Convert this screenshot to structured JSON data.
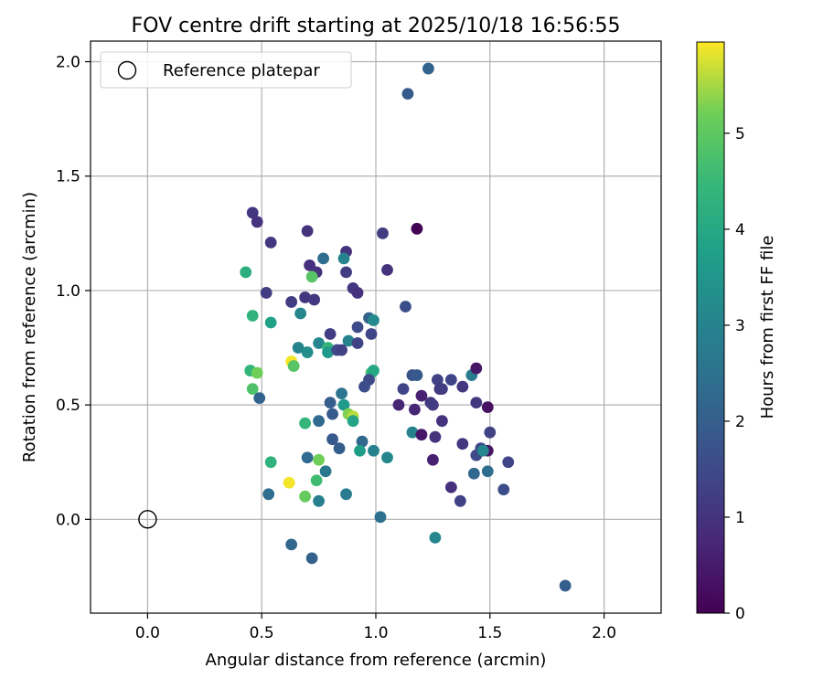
{
  "chart_data": {
    "type": "scatter",
    "title": "FOV centre drift starting at 2025/10/18 16:56:55",
    "xlabel": "Angular distance from reference (arcmin)",
    "ylabel": "Rotation from reference (arcmin)",
    "xlim": [
      -0.25,
      2.25
    ],
    "ylim": [
      -0.41,
      2.09
    ],
    "xticks": [
      0.0,
      0.5,
      1.0,
      1.5,
      2.0
    ],
    "xtick_labels": [
      "0.0",
      "0.5",
      "1.0",
      "1.5",
      "2.0"
    ],
    "yticks": [
      0.0,
      0.5,
      1.0,
      1.5,
      2.0
    ],
    "ytick_labels": [
      "0.0",
      "0.5",
      "1.0",
      "1.5",
      "2.0"
    ],
    "grid": true,
    "legend": {
      "position": "top-left",
      "entries": [
        "Reference platepar"
      ]
    },
    "reference_point": {
      "x": 0.0,
      "y": 0.0
    },
    "colorbar": {
      "label": "Hours from first FF file",
      "range": [
        0,
        5.95
      ],
      "ticks": [
        0,
        1,
        2,
        3,
        4,
        5
      ],
      "tick_labels": [
        "0",
        "1",
        "2",
        "3",
        "4",
        "5"
      ],
      "colormap": "viridis"
    },
    "points": [
      {
        "x": 1.23,
        "y": 1.97,
        "c": 2.1
      },
      {
        "x": 1.14,
        "y": 1.86,
        "c": 1.9
      },
      {
        "x": 0.46,
        "y": 1.34,
        "c": 1.1
      },
      {
        "x": 0.48,
        "y": 1.3,
        "c": 1.0
      },
      {
        "x": 0.54,
        "y": 1.21,
        "c": 1.1
      },
      {
        "x": 0.7,
        "y": 1.26,
        "c": 1.0
      },
      {
        "x": 1.18,
        "y": 1.27,
        "c": 0.05
      },
      {
        "x": 1.03,
        "y": 1.25,
        "c": 1.2
      },
      {
        "x": 0.87,
        "y": 1.17,
        "c": 1.0
      },
      {
        "x": 0.71,
        "y": 1.11,
        "c": 0.9
      },
      {
        "x": 0.74,
        "y": 1.08,
        "c": 1.0
      },
      {
        "x": 0.77,
        "y": 1.14,
        "c": 2.4
      },
      {
        "x": 0.86,
        "y": 1.14,
        "c": 3.0
      },
      {
        "x": 0.87,
        "y": 1.08,
        "c": 1.2
      },
      {
        "x": 1.05,
        "y": 1.09,
        "c": 1.0
      },
      {
        "x": 0.43,
        "y": 1.08,
        "c": 4.2
      },
      {
        "x": 0.72,
        "y": 1.06,
        "c": 4.9
      },
      {
        "x": 0.52,
        "y": 0.99,
        "c": 1.2
      },
      {
        "x": 0.9,
        "y": 1.01,
        "c": 1.1
      },
      {
        "x": 0.92,
        "y": 0.99,
        "c": 1.0
      },
      {
        "x": 0.63,
        "y": 0.95,
        "c": 1.2
      },
      {
        "x": 0.69,
        "y": 0.97,
        "c": 1.1
      },
      {
        "x": 0.73,
        "y": 0.96,
        "c": 1.1
      },
      {
        "x": 1.13,
        "y": 0.93,
        "c": 1.6
      },
      {
        "x": 0.46,
        "y": 0.89,
        "c": 4.3
      },
      {
        "x": 0.67,
        "y": 0.9,
        "c": 3.1
      },
      {
        "x": 0.54,
        "y": 0.86,
        "c": 3.8
      },
      {
        "x": 0.97,
        "y": 0.88,
        "c": 2.1
      },
      {
        "x": 0.99,
        "y": 0.87,
        "c": 3.2
      },
      {
        "x": 0.92,
        "y": 0.84,
        "c": 1.5
      },
      {
        "x": 0.8,
        "y": 0.81,
        "c": 1.2
      },
      {
        "x": 0.98,
        "y": 0.81,
        "c": 1.4
      },
      {
        "x": 0.88,
        "y": 0.78,
        "c": 3.0
      },
      {
        "x": 0.92,
        "y": 0.77,
        "c": 1.3
      },
      {
        "x": 0.75,
        "y": 0.77,
        "c": 3.1
      },
      {
        "x": 0.66,
        "y": 0.75,
        "c": 3.0
      },
      {
        "x": 0.7,
        "y": 0.73,
        "c": 3.3
      },
      {
        "x": 0.79,
        "y": 0.75,
        "c": 4.4
      },
      {
        "x": 0.79,
        "y": 0.73,
        "c": 3.6
      },
      {
        "x": 0.83,
        "y": 0.74,
        "c": 1.5
      },
      {
        "x": 0.85,
        "y": 0.74,
        "c": 1.3
      },
      {
        "x": 0.63,
        "y": 0.69,
        "c": 5.9
      },
      {
        "x": 0.64,
        "y": 0.67,
        "c": 4.9
      },
      {
        "x": 0.45,
        "y": 0.65,
        "c": 4.4
      },
      {
        "x": 0.48,
        "y": 0.64,
        "c": 5.2
      },
      {
        "x": 0.98,
        "y": 0.64,
        "c": 4.6
      },
      {
        "x": 0.99,
        "y": 0.65,
        "c": 4.0
      },
      {
        "x": 0.97,
        "y": 0.61,
        "c": 1.5
      },
      {
        "x": 0.95,
        "y": 0.58,
        "c": 1.6
      },
      {
        "x": 1.16,
        "y": 0.63,
        "c": 1.7
      },
      {
        "x": 1.18,
        "y": 0.63,
        "c": 1.9
      },
      {
        "x": 1.12,
        "y": 0.57,
        "c": 1.4
      },
      {
        "x": 1.27,
        "y": 0.61,
        "c": 1.3
      },
      {
        "x": 1.33,
        "y": 0.61,
        "c": 1.4
      },
      {
        "x": 1.28,
        "y": 0.57,
        "c": 1.1
      },
      {
        "x": 1.29,
        "y": 0.57,
        "c": 1.2
      },
      {
        "x": 1.38,
        "y": 0.58,
        "c": 1.1
      },
      {
        "x": 1.42,
        "y": 0.63,
        "c": 2.8
      },
      {
        "x": 1.44,
        "y": 0.66,
        "c": 0.4
      },
      {
        "x": 0.46,
        "y": 0.57,
        "c": 4.8
      },
      {
        "x": 0.49,
        "y": 0.53,
        "c": 2.1
      },
      {
        "x": 1.1,
        "y": 0.5,
        "c": 0.7
      },
      {
        "x": 1.2,
        "y": 0.54,
        "c": 0.6
      },
      {
        "x": 1.24,
        "y": 0.51,
        "c": 1.1
      },
      {
        "x": 1.25,
        "y": 0.5,
        "c": 1.2
      },
      {
        "x": 1.17,
        "y": 0.48,
        "c": 0.7
      },
      {
        "x": 1.44,
        "y": 0.51,
        "c": 1.1
      },
      {
        "x": 1.49,
        "y": 0.49,
        "c": 0.3
      },
      {
        "x": 0.8,
        "y": 0.51,
        "c": 2.0
      },
      {
        "x": 0.85,
        "y": 0.55,
        "c": 2.6
      },
      {
        "x": 0.86,
        "y": 0.5,
        "c": 3.6
      },
      {
        "x": 0.81,
        "y": 0.46,
        "c": 1.9
      },
      {
        "x": 0.88,
        "y": 0.46,
        "c": 5.3
      },
      {
        "x": 0.9,
        "y": 0.45,
        "c": 5.6
      },
      {
        "x": 0.9,
        "y": 0.43,
        "c": 3.9
      },
      {
        "x": 0.69,
        "y": 0.42,
        "c": 4.4
      },
      {
        "x": 0.75,
        "y": 0.43,
        "c": 2.3
      },
      {
        "x": 1.16,
        "y": 0.38,
        "c": 3.0
      },
      {
        "x": 1.2,
        "y": 0.37,
        "c": 0.4
      },
      {
        "x": 1.26,
        "y": 0.36,
        "c": 1.0
      },
      {
        "x": 1.29,
        "y": 0.43,
        "c": 1.0
      },
      {
        "x": 1.5,
        "y": 0.38,
        "c": 1.3
      },
      {
        "x": 1.38,
        "y": 0.33,
        "c": 1.1
      },
      {
        "x": 0.81,
        "y": 0.35,
        "c": 1.9
      },
      {
        "x": 0.84,
        "y": 0.31,
        "c": 2.0
      },
      {
        "x": 0.94,
        "y": 0.34,
        "c": 2.2
      },
      {
        "x": 0.93,
        "y": 0.3,
        "c": 3.7
      },
      {
        "x": 0.99,
        "y": 0.3,
        "c": 3.0
      },
      {
        "x": 1.05,
        "y": 0.27,
        "c": 3.1
      },
      {
        "x": 0.7,
        "y": 0.27,
        "c": 2.3
      },
      {
        "x": 0.75,
        "y": 0.26,
        "c": 5.2
      },
      {
        "x": 0.54,
        "y": 0.25,
        "c": 4.3
      },
      {
        "x": 0.78,
        "y": 0.21,
        "c": 2.7
      },
      {
        "x": 1.25,
        "y": 0.26,
        "c": 0.6
      },
      {
        "x": 1.44,
        "y": 0.28,
        "c": 1.5
      },
      {
        "x": 1.46,
        "y": 0.31,
        "c": 1.5
      },
      {
        "x": 1.49,
        "y": 0.3,
        "c": 0.4
      },
      {
        "x": 1.47,
        "y": 0.3,
        "c": 3.1
      },
      {
        "x": 1.58,
        "y": 0.25,
        "c": 1.4
      },
      {
        "x": 1.43,
        "y": 0.2,
        "c": 2.2
      },
      {
        "x": 1.49,
        "y": 0.21,
        "c": 2.4
      },
      {
        "x": 0.74,
        "y": 0.17,
        "c": 4.6
      },
      {
        "x": 0.62,
        "y": 0.16,
        "c": 5.9
      },
      {
        "x": 1.33,
        "y": 0.14,
        "c": 0.9
      },
      {
        "x": 1.56,
        "y": 0.13,
        "c": 1.6
      },
      {
        "x": 1.37,
        "y": 0.08,
        "c": 1.3
      },
      {
        "x": 0.53,
        "y": 0.11,
        "c": 2.4
      },
      {
        "x": 0.69,
        "y": 0.1,
        "c": 5.1
      },
      {
        "x": 0.75,
        "y": 0.08,
        "c": 2.9
      },
      {
        "x": 0.87,
        "y": 0.11,
        "c": 2.8
      },
      {
        "x": 1.02,
        "y": 0.01,
        "c": 2.5
      },
      {
        "x": 1.26,
        "y": -0.08,
        "c": 3.1
      },
      {
        "x": 0.63,
        "y": -0.11,
        "c": 2.2
      },
      {
        "x": 0.72,
        "y": -0.17,
        "c": 2.1
      },
      {
        "x": 1.83,
        "y": -0.29,
        "c": 2.0
      }
    ]
  }
}
